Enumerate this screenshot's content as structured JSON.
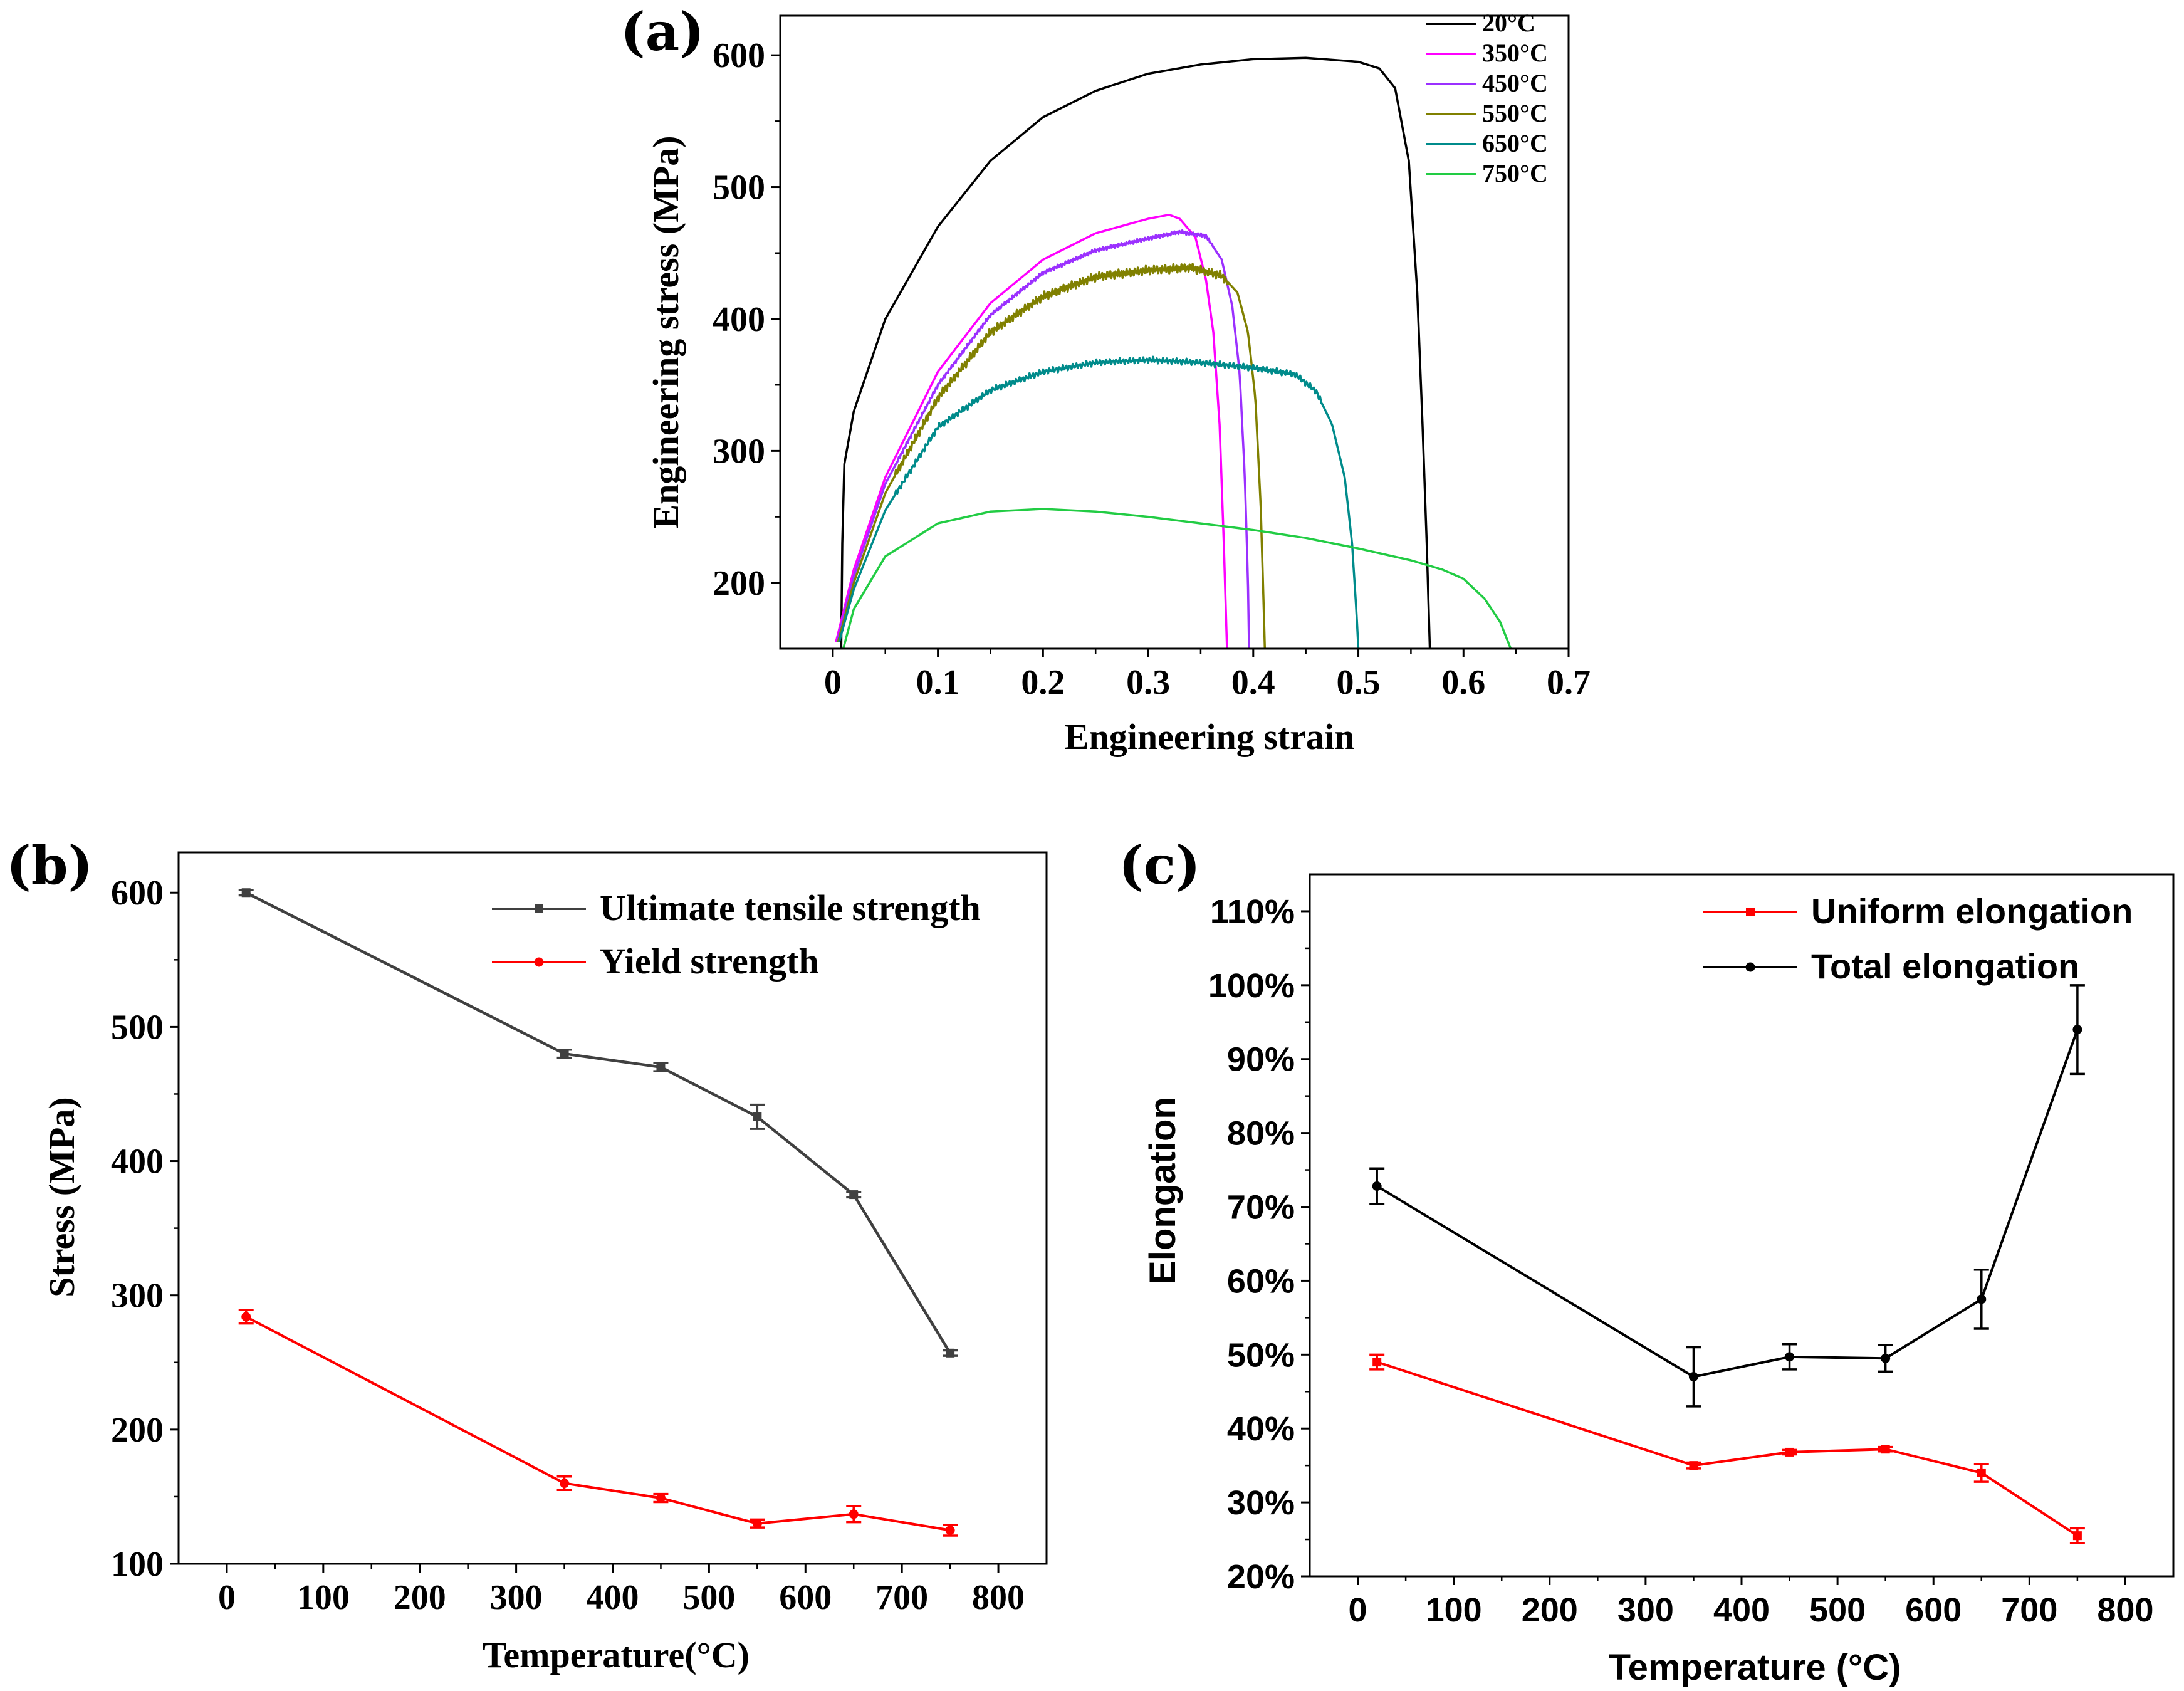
{
  "chart_data": [
    {
      "panel": "(a)",
      "type": "line",
      "xlabel": "Engineering strain",
      "ylabel": "Engineering stress (MPa)",
      "xlim": [
        -0.05,
        0.7
      ],
      "ylim": [
        150,
        630
      ],
      "xticks": [
        0,
        0.1,
        0.2,
        0.3,
        0.4,
        0.5,
        0.6,
        0.7
      ],
      "xtick_labels": [
        "0",
        "0.1",
        "0.2",
        "0.3",
        "0.4",
        "0.5",
        "0.6",
        "0.7"
      ],
      "yticks": [
        200,
        300,
        400,
        500,
        600
      ],
      "ytick_labels": [
        "200",
        "300",
        "400",
        "500",
        "600"
      ],
      "legend_position": "top-right",
      "series": [
        {
          "name": "20°C",
          "color": "#000000",
          "serrated": false,
          "points": [
            [
              0.008,
              150
            ],
            [
              0.009,
              230
            ],
            [
              0.011,
              290
            ],
            [
              0.02,
              330
            ],
            [
              0.05,
              400
            ],
            [
              0.1,
              470
            ],
            [
              0.15,
              520
            ],
            [
              0.2,
              553
            ],
            [
              0.25,
              573
            ],
            [
              0.3,
              586
            ],
            [
              0.35,
              593
            ],
            [
              0.4,
              597
            ],
            [
              0.45,
              598
            ],
            [
              0.5,
              595
            ],
            [
              0.52,
              590
            ],
            [
              0.535,
              575
            ],
            [
              0.548,
              520
            ],
            [
              0.556,
              420
            ],
            [
              0.561,
              320
            ],
            [
              0.565,
              230
            ],
            [
              0.568,
              150
            ]
          ]
        },
        {
          "name": "350°C",
          "color": "#ff00ff",
          "serrated": false,
          "points": [
            [
              0.003,
              155
            ],
            [
              0.02,
              210
            ],
            [
              0.05,
              280
            ],
            [
              0.1,
              360
            ],
            [
              0.15,
              412
            ],
            [
              0.2,
              445
            ],
            [
              0.25,
              465
            ],
            [
              0.3,
              476
            ],
            [
              0.32,
              479
            ],
            [
              0.33,
              476
            ],
            [
              0.345,
              462
            ],
            [
              0.355,
              430
            ],
            [
              0.362,
              390
            ],
            [
              0.368,
              320
            ],
            [
              0.372,
              230
            ],
            [
              0.375,
              150
            ]
          ]
        },
        {
          "name": "450°C",
          "color": "#9b30ff",
          "serrated": true,
          "amp": 3,
          "points": [
            [
              0.004,
              155
            ],
            [
              0.02,
              205
            ],
            [
              0.05,
              275
            ],
            [
              0.1,
              350
            ],
            [
              0.15,
              403
            ],
            [
              0.2,
              435
            ],
            [
              0.25,
              452
            ],
            [
              0.3,
              461
            ],
            [
              0.33,
              466
            ],
            [
              0.355,
              463
            ],
            [
              0.37,
              445
            ],
            [
              0.38,
              410
            ],
            [
              0.387,
              360
            ],
            [
              0.392,
              280
            ],
            [
              0.395,
              200
            ],
            [
              0.396,
              150
            ]
          ]
        },
        {
          "name": "550°C",
          "color": "#808000",
          "serrated": true,
          "amp": 7,
          "points": [
            [
              0.005,
              155
            ],
            [
              0.02,
              200
            ],
            [
              0.05,
              268
            ],
            [
              0.1,
              340
            ],
            [
              0.15,
              390
            ],
            [
              0.2,
              417
            ],
            [
              0.25,
              432
            ],
            [
              0.3,
              437
            ],
            [
              0.34,
              439
            ],
            [
              0.37,
              433
            ],
            [
              0.385,
              420
            ],
            [
              0.395,
              390
            ],
            [
              0.402,
              340
            ],
            [
              0.407,
              260
            ],
            [
              0.41,
              180
            ],
            [
              0.411,
              150
            ]
          ]
        },
        {
          "name": "650°C",
          "color": "#008b8b",
          "serrated": true,
          "amp": 5,
          "points": [
            [
              0.006,
              155
            ],
            [
              0.02,
              195
            ],
            [
              0.05,
              255
            ],
            [
              0.1,
              318
            ],
            [
              0.15,
              346
            ],
            [
              0.2,
              360
            ],
            [
              0.25,
              367
            ],
            [
              0.3,
              369
            ],
            [
              0.35,
              367
            ],
            [
              0.4,
              363
            ],
            [
              0.44,
              358
            ],
            [
              0.46,
              345
            ],
            [
              0.475,
              320
            ],
            [
              0.487,
              280
            ],
            [
              0.494,
              230
            ],
            [
              0.498,
              180
            ],
            [
              0.5,
              150
            ]
          ]
        },
        {
          "name": "750°C",
          "color": "#22cc44",
          "serrated": false,
          "points": [
            [
              0.01,
              150
            ],
            [
              0.02,
              180
            ],
            [
              0.05,
              220
            ],
            [
              0.1,
              245
            ],
            [
              0.15,
              254
            ],
            [
              0.2,
              256
            ],
            [
              0.25,
              254
            ],
            [
              0.3,
              250
            ],
            [
              0.35,
              245
            ],
            [
              0.4,
              240
            ],
            [
              0.45,
              234
            ],
            [
              0.5,
              226
            ],
            [
              0.55,
              217
            ],
            [
              0.58,
              210
            ],
            [
              0.6,
              203
            ],
            [
              0.62,
              188
            ],
            [
              0.635,
              170
            ],
            [
              0.645,
              150
            ]
          ]
        }
      ]
    },
    {
      "panel": "(b)",
      "type": "line",
      "xlabel": "Temperature(°C)",
      "ylabel": "Stress (MPa)",
      "xlim": [
        -50,
        850
      ],
      "ylim": [
        100,
        630
      ],
      "xticks": [
        0,
        100,
        200,
        300,
        400,
        500,
        600,
        700,
        800
      ],
      "xtick_labels": [
        "0",
        "100",
        "200",
        "300",
        "400",
        "500",
        "600",
        "700",
        "800"
      ],
      "yticks": [
        100,
        200,
        300,
        400,
        500,
        600
      ],
      "ytick_labels": [
        "100",
        "200",
        "300",
        "400",
        "500",
        "600"
      ],
      "legend_position": "top-right",
      "x": [
        20,
        350,
        450,
        550,
        650,
        750
      ],
      "series": [
        {
          "name": "Ultimate tensile strength",
          "color": "#404040",
          "marker": "square",
          "values": [
            600,
            480,
            470,
            433,
            375,
            257
          ],
          "errors": [
            2,
            3,
            3,
            9,
            2,
            2
          ]
        },
        {
          "name": "Yield strength",
          "color": "#ff0000",
          "marker": "circle",
          "values": [
            284,
            160,
            149,
            130,
            137,
            125
          ],
          "errors": [
            5,
            5,
            3,
            3,
            6,
            4
          ]
        }
      ]
    },
    {
      "panel": "(c)",
      "type": "line",
      "xlabel": "Temperature (°C)",
      "ylabel": "Elongation",
      "xlim": [
        -50,
        850
      ],
      "ylim": [
        20,
        115
      ],
      "xticks": [
        0,
        100,
        200,
        300,
        400,
        500,
        600,
        700,
        800
      ],
      "xtick_labels": [
        "0",
        "100",
        "200",
        "300",
        "400",
        "500",
        "600",
        "700",
        "800"
      ],
      "yticks": [
        20,
        30,
        40,
        50,
        60,
        70,
        80,
        90,
        100,
        110
      ],
      "ytick_labels": [
        "20%",
        "30%",
        "40%",
        "50%",
        "60%",
        "70%",
        "80%",
        "90%",
        "100%",
        "110%"
      ],
      "legend_position": "top-right",
      "x": [
        20,
        350,
        450,
        550,
        650,
        750
      ],
      "series": [
        {
          "name": "Uniform elongation",
          "color": "#ff0000",
          "marker": "square",
          "values": [
            49,
            35,
            36.8,
            37.2,
            34,
            25.5
          ],
          "errors": [
            1,
            0.4,
            0.3,
            0.3,
            1.2,
            1
          ]
        },
        {
          "name": "Total elongation",
          "color": "#000000",
          "marker": "circle",
          "values": [
            72.8,
            47,
            49.7,
            49.5,
            57.5,
            94
          ],
          "errors": [
            2.4,
            4,
            1.7,
            1.8,
            4,
            6
          ]
        }
      ]
    }
  ]
}
